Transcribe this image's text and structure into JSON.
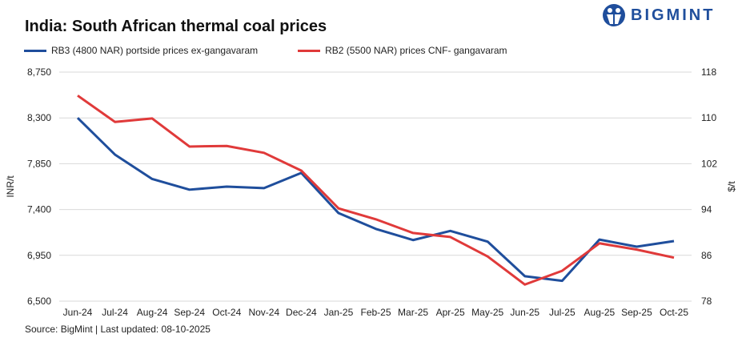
{
  "header": {
    "title": "India: South African thermal coal prices",
    "logo_text": "BIGMINT"
  },
  "footer": {
    "source": "Source: BigMint | Last updated: 08-10-2025"
  },
  "chart_data": {
    "type": "line",
    "title": "India: South African thermal coal prices",
    "categories": [
      "Jun-24",
      "Jul-24",
      "Aug-24",
      "Sep-24",
      "Oct-24",
      "Nov-24",
      "Dec-24",
      "Jan-25",
      "Feb-25",
      "Mar-25",
      "Apr-25",
      "May-25",
      "Jun-25",
      "Jul-25",
      "Aug-25",
      "Sep-25",
      "Oct-25"
    ],
    "ylabel": "INR/t",
    "y2label": "$/t",
    "ylim": [
      6500,
      8750
    ],
    "yticks": [
      "6,500",
      "6,950",
      "7,400",
      "7,850",
      "8,300",
      "8,750"
    ],
    "ytick_values": [
      6500,
      6950,
      7400,
      7850,
      8300,
      8750
    ],
    "y2lim": [
      78,
      118
    ],
    "y2ticks": [
      "78",
      "86",
      "94",
      "102",
      "110",
      "118"
    ],
    "y2tick_values": [
      78,
      86,
      94,
      102,
      110,
      118
    ],
    "grid": true,
    "legend_position": "top-left",
    "series": [
      {
        "name": "RB3 (4800 NAR) portside prices ex-gangavaram",
        "axis": "left",
        "color": "#1f4e9c",
        "values": [
          8300,
          7940,
          7700,
          7595,
          7625,
          7610,
          7760,
          7365,
          7210,
          7100,
          7190,
          7085,
          6745,
          6700,
          7105,
          7035,
          7090
        ]
      },
      {
        "name": "RB2 (5500 NAR) prices CNF- gangavaram",
        "axis": "right",
        "color": "#e03a3a",
        "values": [
          113.9,
          109.3,
          109.9,
          105.0,
          105.1,
          103.9,
          100.8,
          94.2,
          92.3,
          89.9,
          89.2,
          85.8,
          80.9,
          83.3,
          88.1,
          87.0,
          85.6
        ]
      }
    ]
  }
}
